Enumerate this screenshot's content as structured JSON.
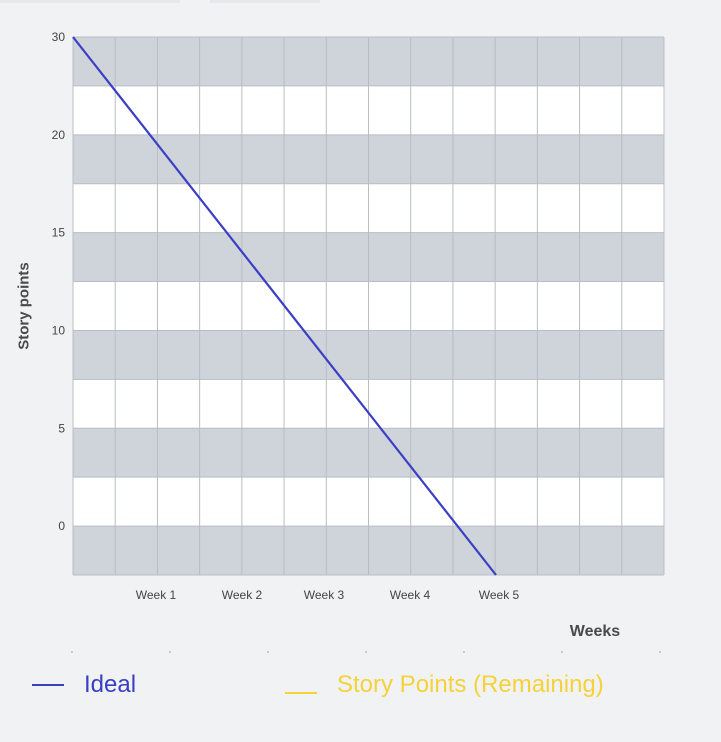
{
  "chart_data": {
    "type": "line",
    "xlabel": "Weeks",
    "ylabel": "Story points",
    "y_ticks": [
      "0",
      "5",
      "10",
      "15",
      "20",
      "30"
    ],
    "x_ticks": [
      "Week 1",
      "Week 2",
      "Week 3",
      "Week 4",
      "Week 5"
    ],
    "ylim": [
      0,
      30
    ],
    "grid": true,
    "legend_position": "bottom",
    "series": [
      {
        "name": "Ideal",
        "color": "#3a3fc4",
        "x": [
          "start",
          "Week 5"
        ],
        "y": [
          30,
          0
        ]
      },
      {
        "name": "Story Points (Remaining)",
        "color": "#f5d23a",
        "x": [],
        "y": []
      }
    ]
  },
  "colors": {
    "band_dark": "#cfd4db",
    "band_light": "#ffffff",
    "grid": "#b9bdc3"
  }
}
